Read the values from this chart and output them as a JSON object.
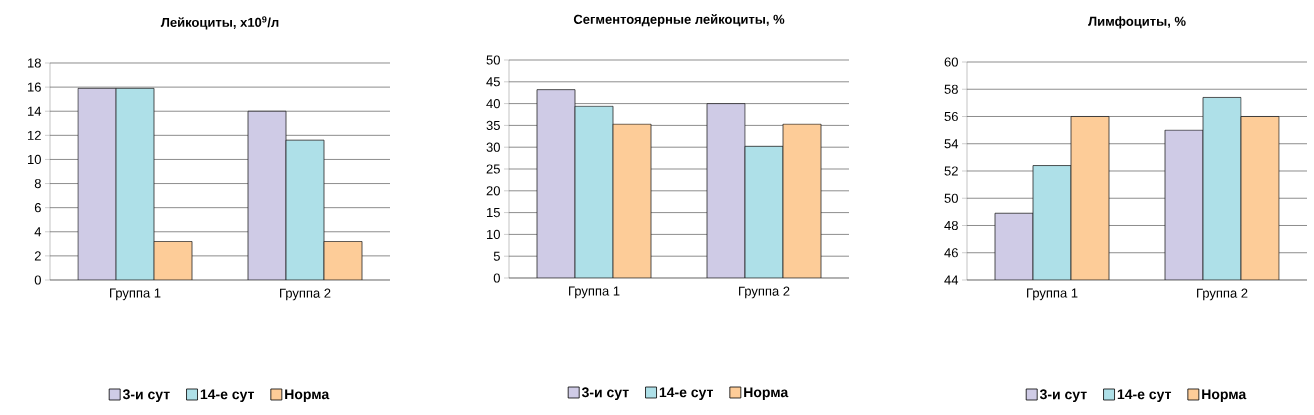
{
  "chart_data": [
    {
      "type": "bar",
      "title": "Лейкоциты, х10$^{9}$/л",
      "categories": [
        "Группа 1",
        "Группа 2"
      ],
      "ylim": [
        0,
        18
      ],
      "yticks": [
        0,
        2,
        4,
        6,
        8,
        10,
        12,
        14,
        16,
        18
      ],
      "grid": "y",
      "legend": "bottom",
      "series": [
        {
          "name": "3-и сут",
          "color": "#cfcbe6",
          "values": [
            15.9,
            14.0
          ]
        },
        {
          "name": "14-е сут",
          "color": "#aee0e8",
          "values": [
            15.9,
            11.6
          ]
        },
        {
          "name": "Норма",
          "color": "#fdcc98",
          "values": [
            3.2,
            3.2
          ]
        }
      ]
    },
    {
      "type": "bar",
      "title": "Сегментоядерные лейкоциты, %",
      "categories": [
        "Группа 1",
        "Группа 2"
      ],
      "ylim": [
        0,
        50
      ],
      "yticks": [
        0,
        5,
        10,
        15,
        20,
        25,
        30,
        35,
        40,
        45,
        50
      ],
      "grid": "y",
      "legend": "bottom",
      "series": [
        {
          "name": "3-и сут",
          "color": "#cfcbe6",
          "values": [
            43.2,
            40.0
          ]
        },
        {
          "name": "14-е сут",
          "color": "#aee0e8",
          "values": [
            39.4,
            30.2
          ]
        },
        {
          "name": "Норма",
          "color": "#fdcc98",
          "values": [
            35.3,
            35.3
          ]
        }
      ]
    },
    {
      "type": "bar",
      "title": "Лимфоциты, %",
      "categories": [
        "Группа 1",
        "Группа 2"
      ],
      "ylim": [
        44,
        60
      ],
      "yticks": [
        44,
        46,
        48,
        50,
        52,
        54,
        56,
        58,
        60
      ],
      "grid": "y",
      "legend": "bottom",
      "series": [
        {
          "name": "3-и сут",
          "color": "#cfcbe6",
          "values": [
            48.9,
            55.0
          ]
        },
        {
          "name": "14-е сут",
          "color": "#aee0e8",
          "values": [
            52.4,
            57.4
          ]
        },
        {
          "name": "Норма",
          "color": "#fdcc98",
          "values": [
            56.0,
            56.0
          ]
        }
      ]
    }
  ]
}
